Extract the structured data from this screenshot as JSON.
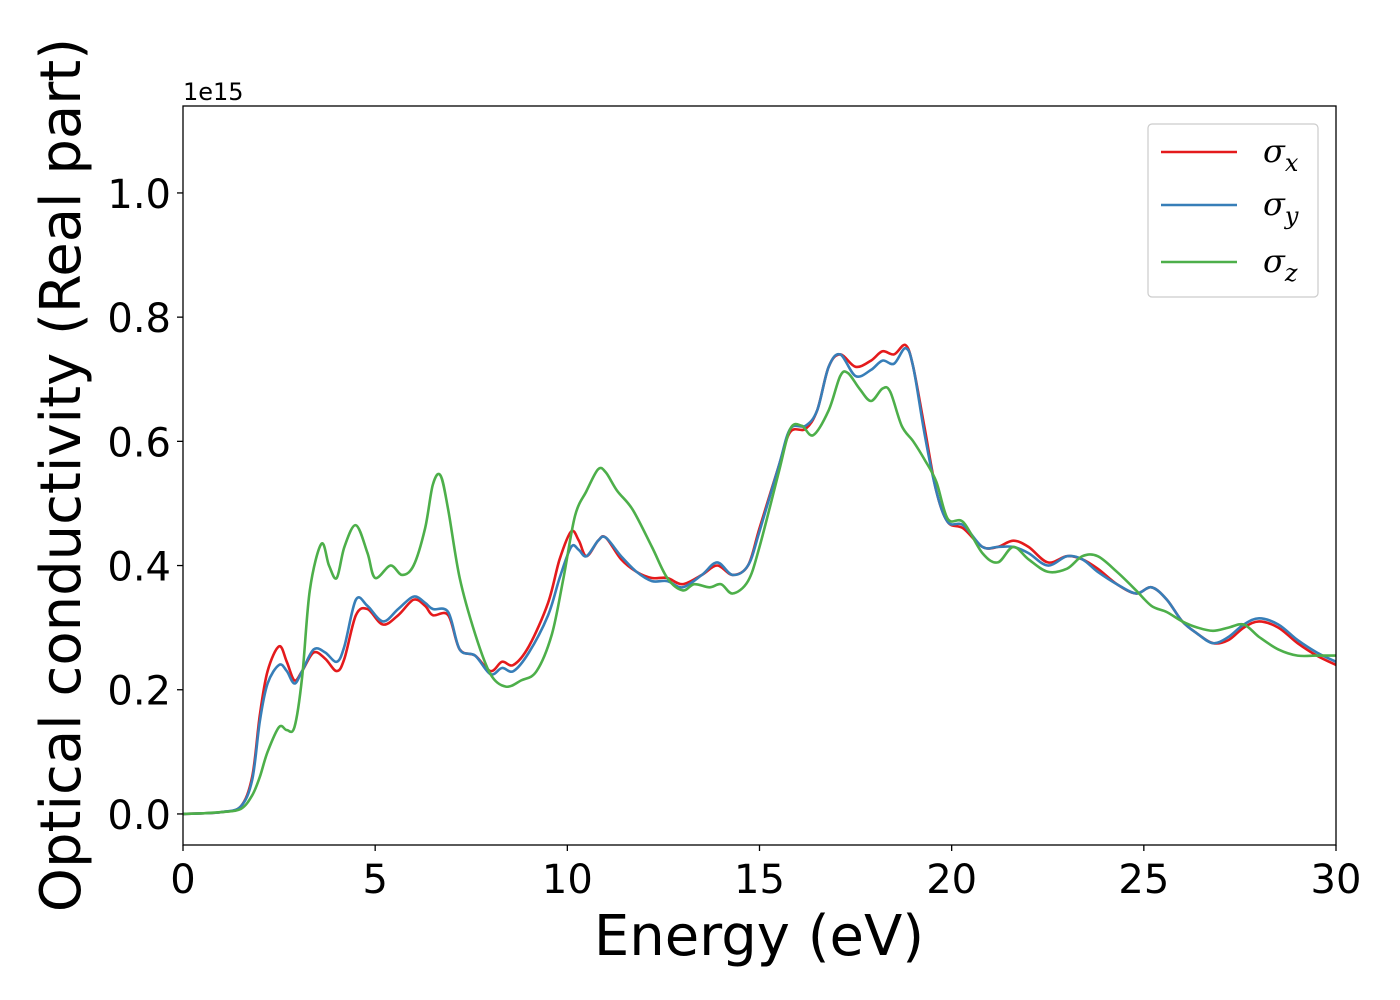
{
  "chart_data": {
    "type": "line",
    "xlabel": "Energy (eV)",
    "ylabel": "Optical conductivity (Real part)",
    "y_offset_text": "1e15",
    "xlim": [
      0,
      30
    ],
    "ylim": [
      -0.05,
      1.14
    ],
    "x_ticks": [
      0,
      5,
      10,
      15,
      20,
      25,
      30
    ],
    "x_tick_labels": [
      "0",
      "5",
      "10",
      "15",
      "20",
      "25",
      "30"
    ],
    "y_ticks": [
      0.0,
      0.2,
      0.4,
      0.6,
      0.8,
      1.0
    ],
    "y_tick_labels": [
      "0.0",
      "0.2",
      "0.4",
      "0.6",
      "0.8",
      "1.0"
    ],
    "grid": false,
    "legend_position": "top-right",
    "series": [
      {
        "name": "σx",
        "symbol": "σ",
        "sub": "x",
        "color": "#e41a1c",
        "points": [
          [
            0,
            0
          ],
          [
            0.5,
            0.001
          ],
          [
            1,
            0.003
          ],
          [
            1.5,
            0.012
          ],
          [
            1.8,
            0.06
          ],
          [
            2.0,
            0.16
          ],
          [
            2.2,
            0.23
          ],
          [
            2.5,
            0.27
          ],
          [
            2.7,
            0.245
          ],
          [
            2.9,
            0.215
          ],
          [
            3.1,
            0.23
          ],
          [
            3.4,
            0.26
          ],
          [
            3.7,
            0.25
          ],
          [
            4.0,
            0.23
          ],
          [
            4.2,
            0.25
          ],
          [
            4.5,
            0.32
          ],
          [
            4.8,
            0.33
          ],
          [
            5.2,
            0.305
          ],
          [
            5.6,
            0.32
          ],
          [
            6.0,
            0.345
          ],
          [
            6.3,
            0.335
          ],
          [
            6.5,
            0.32
          ],
          [
            6.9,
            0.32
          ],
          [
            7.2,
            0.265
          ],
          [
            7.6,
            0.255
          ],
          [
            8.0,
            0.23
          ],
          [
            8.3,
            0.245
          ],
          [
            8.6,
            0.24
          ],
          [
            9.0,
            0.27
          ],
          [
            9.5,
            0.34
          ],
          [
            9.8,
            0.41
          ],
          [
            10.1,
            0.455
          ],
          [
            10.3,
            0.44
          ],
          [
            10.5,
            0.415
          ],
          [
            10.8,
            0.44
          ],
          [
            11.0,
            0.445
          ],
          [
            11.4,
            0.41
          ],
          [
            11.8,
            0.39
          ],
          [
            12.2,
            0.38
          ],
          [
            12.6,
            0.38
          ],
          [
            13.0,
            0.37
          ],
          [
            13.5,
            0.385
          ],
          [
            13.9,
            0.4
          ],
          [
            14.3,
            0.385
          ],
          [
            14.7,
            0.4
          ],
          [
            15.0,
            0.46
          ],
          [
            15.5,
            0.56
          ],
          [
            15.8,
            0.615
          ],
          [
            16.2,
            0.62
          ],
          [
            16.5,
            0.65
          ],
          [
            16.8,
            0.72
          ],
          [
            17.1,
            0.74
          ],
          [
            17.5,
            0.72
          ],
          [
            17.9,
            0.73
          ],
          [
            18.2,
            0.745
          ],
          [
            18.5,
            0.74
          ],
          [
            18.8,
            0.755
          ],
          [
            19.0,
            0.72
          ],
          [
            19.3,
            0.62
          ],
          [
            19.6,
            0.52
          ],
          [
            19.9,
            0.47
          ],
          [
            20.3,
            0.46
          ],
          [
            20.8,
            0.43
          ],
          [
            21.2,
            0.43
          ],
          [
            21.6,
            0.44
          ],
          [
            22.0,
            0.43
          ],
          [
            22.5,
            0.405
          ],
          [
            23.0,
            0.415
          ],
          [
            23.4,
            0.41
          ],
          [
            23.8,
            0.395
          ],
          [
            24.3,
            0.37
          ],
          [
            24.8,
            0.355
          ],
          [
            25.2,
            0.365
          ],
          [
            25.6,
            0.345
          ],
          [
            26.0,
            0.31
          ],
          [
            26.4,
            0.29
          ],
          [
            26.8,
            0.275
          ],
          [
            27.2,
            0.28
          ],
          [
            27.6,
            0.3
          ],
          [
            28.0,
            0.31
          ],
          [
            28.5,
            0.3
          ],
          [
            29.0,
            0.275
          ],
          [
            29.5,
            0.255
          ],
          [
            30.0,
            0.24
          ]
        ]
      },
      {
        "name": "σy",
        "symbol": "σ",
        "sub": "y",
        "color": "#377eb8",
        "points": [
          [
            0,
            0
          ],
          [
            0.5,
            0.001
          ],
          [
            1,
            0.003
          ],
          [
            1.5,
            0.012
          ],
          [
            1.8,
            0.055
          ],
          [
            2.0,
            0.15
          ],
          [
            2.2,
            0.21
          ],
          [
            2.5,
            0.24
          ],
          [
            2.7,
            0.23
          ],
          [
            2.9,
            0.21
          ],
          [
            3.1,
            0.23
          ],
          [
            3.4,
            0.265
          ],
          [
            3.7,
            0.26
          ],
          [
            4.0,
            0.245
          ],
          [
            4.2,
            0.27
          ],
          [
            4.5,
            0.345
          ],
          [
            4.8,
            0.335
          ],
          [
            5.2,
            0.31
          ],
          [
            5.6,
            0.33
          ],
          [
            6.0,
            0.35
          ],
          [
            6.3,
            0.34
          ],
          [
            6.5,
            0.33
          ],
          [
            6.9,
            0.325
          ],
          [
            7.2,
            0.265
          ],
          [
            7.6,
            0.255
          ],
          [
            8.0,
            0.225
          ],
          [
            8.3,
            0.235
          ],
          [
            8.6,
            0.23
          ],
          [
            9.0,
            0.26
          ],
          [
            9.5,
            0.32
          ],
          [
            9.8,
            0.38
          ],
          [
            10.1,
            0.43
          ],
          [
            10.3,
            0.425
          ],
          [
            10.5,
            0.415
          ],
          [
            10.8,
            0.44
          ],
          [
            11.0,
            0.445
          ],
          [
            11.4,
            0.415
          ],
          [
            11.8,
            0.39
          ],
          [
            12.2,
            0.375
          ],
          [
            12.6,
            0.375
          ],
          [
            13.0,
            0.365
          ],
          [
            13.5,
            0.385
          ],
          [
            13.9,
            0.405
          ],
          [
            14.3,
            0.385
          ],
          [
            14.7,
            0.4
          ],
          [
            15.0,
            0.455
          ],
          [
            15.5,
            0.56
          ],
          [
            15.8,
            0.62
          ],
          [
            16.2,
            0.625
          ],
          [
            16.5,
            0.65
          ],
          [
            16.8,
            0.72
          ],
          [
            17.1,
            0.74
          ],
          [
            17.5,
            0.705
          ],
          [
            17.9,
            0.715
          ],
          [
            18.2,
            0.73
          ],
          [
            18.5,
            0.725
          ],
          [
            18.8,
            0.75
          ],
          [
            19.0,
            0.72
          ],
          [
            19.3,
            0.61
          ],
          [
            19.6,
            0.52
          ],
          [
            19.9,
            0.47
          ],
          [
            20.3,
            0.465
          ],
          [
            20.8,
            0.43
          ],
          [
            21.2,
            0.43
          ],
          [
            21.6,
            0.43
          ],
          [
            22.0,
            0.42
          ],
          [
            22.5,
            0.4
          ],
          [
            23.0,
            0.415
          ],
          [
            23.4,
            0.41
          ],
          [
            23.8,
            0.39
          ],
          [
            24.3,
            0.37
          ],
          [
            24.8,
            0.355
          ],
          [
            25.2,
            0.365
          ],
          [
            25.6,
            0.345
          ],
          [
            26.0,
            0.31
          ],
          [
            26.4,
            0.29
          ],
          [
            26.8,
            0.275
          ],
          [
            27.2,
            0.285
          ],
          [
            27.6,
            0.305
          ],
          [
            28.0,
            0.315
          ],
          [
            28.5,
            0.305
          ],
          [
            29.0,
            0.28
          ],
          [
            29.5,
            0.26
          ],
          [
            30.0,
            0.245
          ]
        ]
      },
      {
        "name": "σz",
        "symbol": "σ",
        "sub": "z",
        "color": "#4daf4a",
        "points": [
          [
            0,
            0
          ],
          [
            0.5,
            0.001
          ],
          [
            1,
            0.003
          ],
          [
            1.5,
            0.008
          ],
          [
            1.8,
            0.03
          ],
          [
            2.0,
            0.06
          ],
          [
            2.2,
            0.1
          ],
          [
            2.5,
            0.14
          ],
          [
            2.7,
            0.135
          ],
          [
            2.9,
            0.14
          ],
          [
            3.1,
            0.22
          ],
          [
            3.3,
            0.36
          ],
          [
            3.6,
            0.435
          ],
          [
            3.8,
            0.4
          ],
          [
            4.0,
            0.38
          ],
          [
            4.2,
            0.43
          ],
          [
            4.5,
            0.465
          ],
          [
            4.8,
            0.42
          ],
          [
            5.0,
            0.38
          ],
          [
            5.4,
            0.4
          ],
          [
            5.7,
            0.385
          ],
          [
            6.0,
            0.4
          ],
          [
            6.3,
            0.46
          ],
          [
            6.5,
            0.53
          ],
          [
            6.7,
            0.545
          ],
          [
            6.9,
            0.49
          ],
          [
            7.2,
            0.38
          ],
          [
            7.6,
            0.29
          ],
          [
            8.0,
            0.225
          ],
          [
            8.4,
            0.205
          ],
          [
            8.8,
            0.215
          ],
          [
            9.2,
            0.23
          ],
          [
            9.6,
            0.29
          ],
          [
            9.9,
            0.38
          ],
          [
            10.2,
            0.48
          ],
          [
            10.5,
            0.52
          ],
          [
            10.8,
            0.555
          ],
          [
            11.0,
            0.55
          ],
          [
            11.3,
            0.52
          ],
          [
            11.7,
            0.49
          ],
          [
            12.2,
            0.43
          ],
          [
            12.6,
            0.38
          ],
          [
            13.0,
            0.36
          ],
          [
            13.3,
            0.37
          ],
          [
            13.7,
            0.365
          ],
          [
            14.0,
            0.37
          ],
          [
            14.3,
            0.355
          ],
          [
            14.7,
            0.375
          ],
          [
            15.0,
            0.43
          ],
          [
            15.5,
            0.55
          ],
          [
            15.8,
            0.62
          ],
          [
            16.1,
            0.625
          ],
          [
            16.4,
            0.61
          ],
          [
            16.8,
            0.65
          ],
          [
            17.1,
            0.705
          ],
          [
            17.3,
            0.71
          ],
          [
            17.6,
            0.685
          ],
          [
            17.9,
            0.665
          ],
          [
            18.2,
            0.685
          ],
          [
            18.4,
            0.68
          ],
          [
            18.7,
            0.625
          ],
          [
            19.0,
            0.6
          ],
          [
            19.3,
            0.57
          ],
          [
            19.6,
            0.535
          ],
          [
            19.9,
            0.475
          ],
          [
            20.3,
            0.47
          ],
          [
            20.8,
            0.42
          ],
          [
            21.2,
            0.405
          ],
          [
            21.6,
            0.43
          ],
          [
            22.0,
            0.41
          ],
          [
            22.5,
            0.39
          ],
          [
            23.0,
            0.395
          ],
          [
            23.4,
            0.415
          ],
          [
            23.8,
            0.415
          ],
          [
            24.3,
            0.39
          ],
          [
            24.8,
            0.36
          ],
          [
            25.2,
            0.335
          ],
          [
            25.6,
            0.325
          ],
          [
            26.0,
            0.31
          ],
          [
            26.4,
            0.3
          ],
          [
            26.8,
            0.295
          ],
          [
            27.2,
            0.3
          ],
          [
            27.6,
            0.305
          ],
          [
            28.0,
            0.285
          ],
          [
            28.5,
            0.265
          ],
          [
            29.0,
            0.255
          ],
          [
            29.5,
            0.255
          ],
          [
            30.0,
            0.255
          ]
        ]
      }
    ]
  }
}
